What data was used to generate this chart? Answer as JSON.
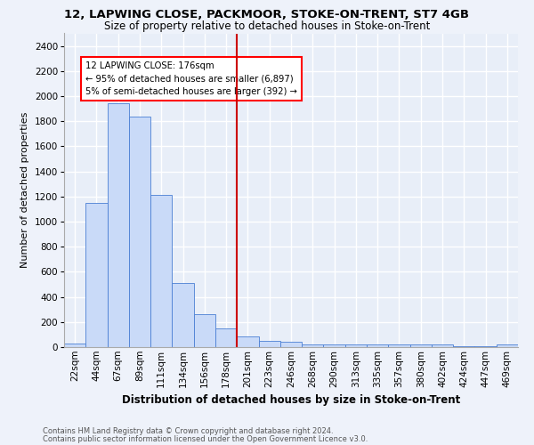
{
  "title": "12, LAPWING CLOSE, PACKMOOR, STOKE-ON-TRENT, ST7 4GB",
  "subtitle": "Size of property relative to detached houses in Stoke-on-Trent",
  "xlabel": "Distribution of detached houses by size in Stoke-on-Trent",
  "ylabel": "Number of detached properties",
  "footnote1": "Contains HM Land Registry data © Crown copyright and database right 2024.",
  "footnote2": "Contains public sector information licensed under the Open Government Licence v3.0.",
  "annotation_title": "12 LAPWING CLOSE: 176sqm",
  "annotation_line1": "← 95% of detached houses are smaller (6,897)",
  "annotation_line2": "5% of semi-detached houses are larger (392) →",
  "vline_category_index": 7,
  "bar_categories": [
    "22sqm",
    "44sqm",
    "67sqm",
    "89sqm",
    "111sqm",
    "134sqm",
    "156sqm",
    "178sqm",
    "201sqm",
    "223sqm",
    "246sqm",
    "268sqm",
    "290sqm",
    "313sqm",
    "335sqm",
    "357sqm",
    "380sqm",
    "402sqm",
    "424sqm",
    "447sqm",
    "469sqm"
  ],
  "bar_values": [
    30,
    1150,
    1940,
    1840,
    1210,
    510,
    265,
    150,
    85,
    47,
    40,
    22,
    20,
    20,
    20,
    20,
    20,
    20,
    5,
    5,
    20
  ],
  "bar_color": "#c9daf8",
  "bar_edgecolor": "#4a7fd4",
  "vline_color": "#cc0000",
  "background_color": "#e8eef8",
  "grid_color": "#ffffff",
  "fig_facecolor": "#eef2fa",
  "ylim": [
    0,
    2500
  ],
  "yticks": [
    0,
    200,
    400,
    600,
    800,
    1000,
    1200,
    1400,
    1600,
    1800,
    2000,
    2200,
    2400
  ],
  "title_fontsize": 9.5,
  "subtitle_fontsize": 8.5,
  "xlabel_fontsize": 8.5,
  "ylabel_fontsize": 8,
  "tick_fontsize": 7.5,
  "footnote_fontsize": 6.0
}
